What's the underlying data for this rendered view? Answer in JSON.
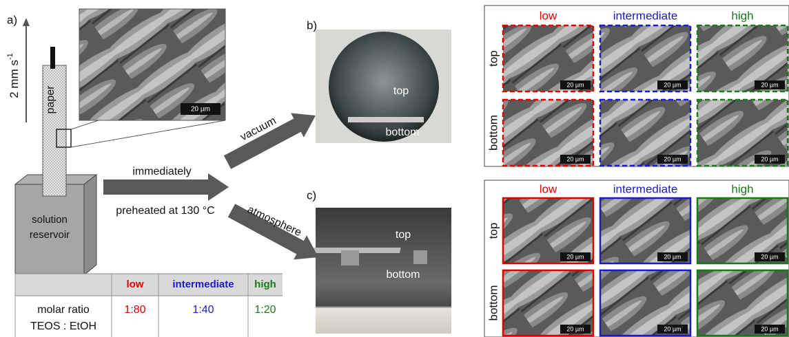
{
  "panel_labels": [
    "a)",
    "b)",
    "c)"
  ],
  "panel_a": {
    "rate": {
      "text": "2 mm s",
      "superscript": "-1"
    },
    "paper_label": "paper",
    "inset_scale_bar": "20 µm",
    "reservoir_lines": [
      "solution",
      "reservoir"
    ]
  },
  "arrows": {
    "immediately": "immediately",
    "preheated": "preheated at 130 °C",
    "vacuum": "vacuum",
    "atmosphere": "atmosphere"
  },
  "photo_b": {
    "top": "top",
    "bottom": "bottom"
  },
  "photo_c": {
    "top": "top",
    "bottom": "bottom"
  },
  "grid_b": {
    "border": "dashed",
    "columns": [
      {
        "label": "low",
        "color": "#e00000"
      },
      {
        "label": "intermediate",
        "color": "#1a1acc"
      },
      {
        "label": "high",
        "color": "#1a7a1a"
      }
    ],
    "rows": [
      "top",
      "bottom"
    ],
    "scale_bars": [
      [
        "20 µm",
        "20 µm",
        "20 µm"
      ],
      [
        "20 µm",
        "20 µm",
        "20 µm"
      ]
    ]
  },
  "grid_c": {
    "border": "solid",
    "columns": [
      {
        "label": "low",
        "color": "#e00000"
      },
      {
        "label": "intermediate",
        "color": "#1a1acc"
      },
      {
        "label": "high",
        "color": "#1a7a1a"
      }
    ],
    "rows": [
      "top",
      "bottom"
    ],
    "scale_bars": [
      [
        "20 µm",
        "20 µm",
        "20 µm"
      ],
      [
        "20 µm",
        "20 µm",
        "20 µm"
      ]
    ]
  },
  "table": {
    "columns": [
      {
        "label": "low",
        "color": "#e00000"
      },
      {
        "label": "intermediate",
        "color": "#1a1acc"
      },
      {
        "label": "high",
        "color": "#1a7a1a"
      }
    ],
    "row_label": [
      "molar ratio",
      "TEOS : EtOH"
    ],
    "values": [
      "1:80",
      "1:40",
      "1:20"
    ]
  }
}
